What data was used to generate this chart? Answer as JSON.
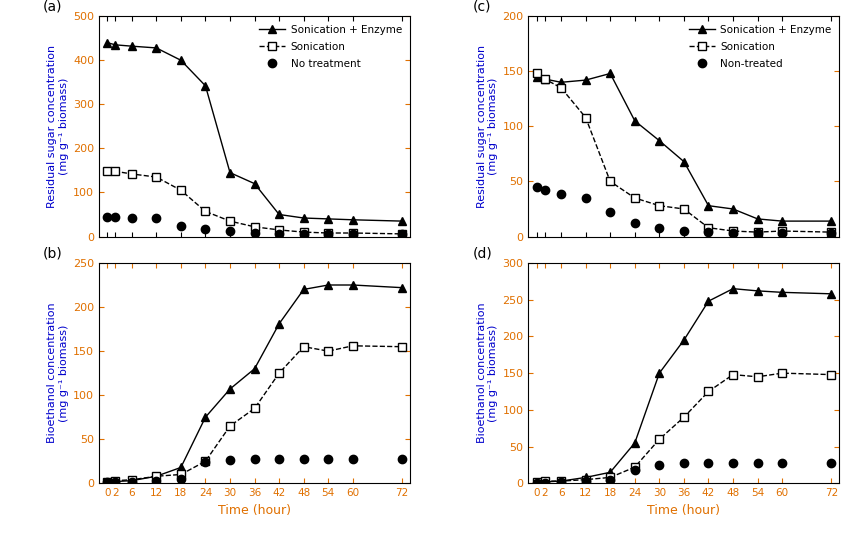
{
  "time": [
    0,
    2,
    6,
    12,
    18,
    24,
    30,
    36,
    42,
    48,
    54,
    60,
    72
  ],
  "a_enzyme": [
    440,
    435,
    432,
    428,
    400,
    342,
    145,
    120,
    50,
    42,
    40,
    38,
    35
  ],
  "a_sonic": [
    148,
    148,
    142,
    135,
    105,
    57,
    35,
    22,
    15,
    10,
    8,
    8,
    6
  ],
  "a_none": [
    45,
    44,
    43,
    42,
    25,
    18,
    12,
    8,
    6,
    5,
    5,
    5,
    5
  ],
  "b_enzyme": [
    1,
    2,
    3,
    8,
    18,
    75,
    107,
    130,
    181,
    220,
    225,
    225,
    222
  ],
  "b_sonic": [
    2,
    3,
    4,
    8,
    10,
    25,
    65,
    85,
    125,
    155,
    150,
    156,
    155
  ],
  "b_none": [
    1,
    1,
    2,
    3,
    5,
    24,
    27,
    28,
    28,
    28,
    28,
    28,
    28
  ],
  "c_enzyme": [
    145,
    143,
    140,
    142,
    148,
    105,
    87,
    68,
    28,
    25,
    16,
    14,
    14
  ],
  "c_sonic": [
    148,
    143,
    135,
    108,
    50,
    35,
    28,
    25,
    8,
    5,
    4,
    5,
    4
  ],
  "c_none": [
    45,
    42,
    39,
    35,
    22,
    12,
    8,
    5,
    4,
    3,
    3,
    3,
    3
  ],
  "d_enzyme": [
    2,
    2,
    3,
    8,
    15,
    55,
    150,
    195,
    248,
    265,
    262,
    260,
    258
  ],
  "d_sonic": [
    2,
    3,
    3,
    5,
    8,
    22,
    60,
    90,
    125,
    148,
    145,
    150,
    148
  ],
  "d_none": [
    1,
    1,
    2,
    3,
    5,
    18,
    25,
    28,
    28,
    28,
    28,
    28,
    28
  ],
  "ylabel_color": "#0000cc",
  "tick_label_color": "#e07000",
  "xlabel_color": "#e07000",
  "legend_text_color": "#000000",
  "panel_label_color": "#000000",
  "line_color": "#000000",
  "ylim_a": [
    0,
    500
  ],
  "ylim_b": [
    0,
    250
  ],
  "ylim_c": [
    0,
    200
  ],
  "ylim_d": [
    0,
    300
  ],
  "yticks_a": [
    0,
    100,
    200,
    300,
    400,
    500
  ],
  "yticks_b": [
    0,
    50,
    100,
    150,
    200,
    250
  ],
  "yticks_c": [
    0,
    50,
    100,
    150,
    200
  ],
  "yticks_d": [
    0,
    50,
    100,
    150,
    200,
    250,
    300
  ],
  "xticks": [
    0,
    2,
    6,
    12,
    18,
    24,
    30,
    36,
    42,
    48,
    54,
    60,
    72
  ],
  "ylabel_residual": "Residual sugar concentration\n(mg g⁻¹ biomass)",
  "ylabel_bioethanol": "Bioethanol concentration\n(mg g⁻¹ biomass)",
  "xlabel": "Time (hour)",
  "legend_enzyme": "Sonication + Enzyme",
  "legend_sonic": "Sonication",
  "legend_none_a": "No treatment",
  "legend_none_c": "Non-treated"
}
